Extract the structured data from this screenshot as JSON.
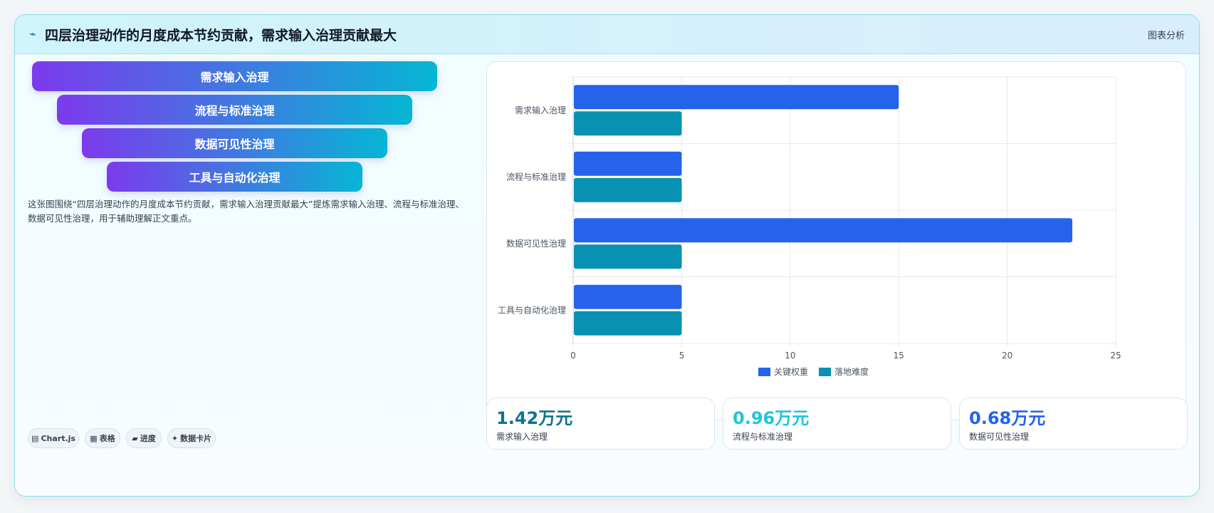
{
  "header": {
    "icon": "zigzag-icon",
    "title": "四层治理动作的月度成本节约贡献，需求输入治理贡献最大",
    "tag": "图表分析"
  },
  "funnel": {
    "layers": [
      "需求输入治理",
      "流程与标准治理",
      "数据可见性治理",
      "工具与自动化治理"
    ]
  },
  "description": "这张图围绕“四层治理动作的月度成本节约贡献，需求输入治理贡献最大”提炼需求输入治理、流程与标准治理、数据可见性治理，用于辅助理解正文重点。",
  "chips": [
    {
      "icon": "bar-chart-icon",
      "glyph": "▤",
      "label": "Chart.js"
    },
    {
      "icon": "table-icon",
      "glyph": "▦",
      "label": "表格"
    },
    {
      "icon": "progress-icon",
      "glyph": "▰",
      "label": "进度"
    },
    {
      "icon": "sparkle-icon",
      "glyph": "✦",
      "label": "数据卡片"
    }
  ],
  "kpis": [
    {
      "value": "1.42万元",
      "label": "需求输入治理",
      "color": "#0e7490"
    },
    {
      "value": "0.96万元",
      "label": "流程与标准治理",
      "color": "#22c4dd"
    },
    {
      "value": "0.68万元",
      "label": "数据可见性治理",
      "color": "#2563eb"
    }
  ],
  "chart_data": {
    "type": "bar",
    "orientation": "horizontal",
    "categories": [
      "需求输入治理",
      "流程与标准治理",
      "数据可见性治理",
      "工具与自动化治理"
    ],
    "series": [
      {
        "name": "关键权重",
        "values": [
          15,
          5,
          23,
          5
        ],
        "color": "#2563eb"
      },
      {
        "name": "落地难度",
        "values": [
          5,
          5,
          5,
          5
        ],
        "color": "#0891b2"
      }
    ],
    "xlim": [
      0,
      25
    ],
    "xticks": [
      0,
      5,
      10,
      15,
      20,
      25
    ],
    "grid": true,
    "legend_position": "bottom"
  }
}
